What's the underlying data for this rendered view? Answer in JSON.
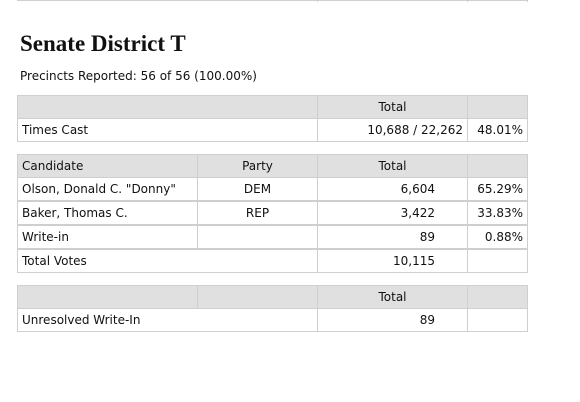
{
  "header": {
    "title": "Senate District T",
    "precincts": "Precincts Reported: 56 of 56 (100.00%)"
  },
  "times_cast": {
    "total_header": "Total",
    "label": "Times Cast",
    "value": "10,688 / 22,262",
    "percent": "48.01%"
  },
  "results": {
    "columns": [
      "Candidate",
      "Party",
      "Total"
    ],
    "rows": [
      {
        "name": "Olson, Donald C. \"Donny\"",
        "party": "DEM",
        "total": "6,604",
        "percent": "65.29%"
      },
      {
        "name": "Baker, Thomas C.",
        "party": "REP",
        "total": "3,422",
        "percent": "33.83%"
      },
      {
        "name": "Write-in",
        "total": "89",
        "percent": "0.88%"
      }
    ],
    "total_votes": {
      "name": "Total Votes",
      "total": "10,115"
    }
  },
  "unresolved": {
    "total_header": "Total",
    "name": "Unresolved Write-In",
    "total": "89"
  }
}
